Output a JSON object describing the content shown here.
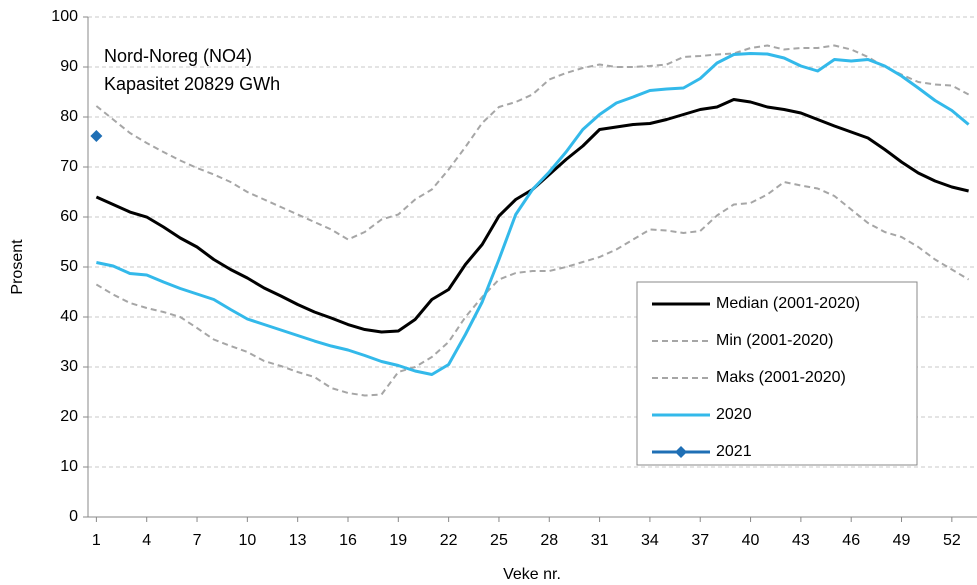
{
  "chart_data": {
    "type": "line",
    "title": "Nord-Noreg (NO4)",
    "subtitle": "Kapasitet 20829 GWh",
    "x_label": "Veke nr.",
    "y_label": "Prosent",
    "x": [
      1,
      2,
      3,
      4,
      5,
      6,
      7,
      8,
      9,
      10,
      11,
      12,
      13,
      14,
      15,
      16,
      17,
      18,
      19,
      20,
      21,
      22,
      23,
      24,
      25,
      26,
      27,
      28,
      29,
      30,
      31,
      32,
      33,
      34,
      35,
      36,
      37,
      38,
      39,
      40,
      41,
      42,
      43,
      44,
      45,
      46,
      47,
      48,
      49,
      50,
      51,
      52,
      53
    ],
    "xlim": [
      0.5,
      53.5
    ],
    "xticks": [
      1,
      4,
      7,
      10,
      13,
      16,
      19,
      22,
      25,
      28,
      31,
      34,
      37,
      40,
      43,
      46,
      49,
      52
    ],
    "ylim": [
      0,
      100
    ],
    "yticks": [
      0,
      10,
      20,
      30,
      40,
      50,
      60,
      70,
      80,
      90,
      100
    ],
    "grid": true,
    "legend": "lower right",
    "series": [
      {
        "name": "Median (2001-2020)",
        "color": "#000000",
        "style": "solid",
        "width": 3,
        "values": [
          64,
          62.5,
          61,
          60,
          58,
          55.8,
          54,
          51.5,
          49.5,
          47.8,
          45.8,
          44.2,
          42.5,
          41,
          39.8,
          38.5,
          37.5,
          37,
          37.2,
          39.5,
          43.5,
          45.5,
          50.5,
          54.5,
          60.2,
          63.5,
          65.5,
          68.5,
          71.5,
          74.2,
          77.5,
          78,
          78.5,
          78.7,
          79.5,
          80.5,
          81.5,
          82,
          83.5,
          83,
          82,
          81.5,
          80.8,
          79.5,
          78.2,
          77,
          75.8,
          73.5,
          71,
          68.8,
          67.2,
          66,
          65.2
        ]
      },
      {
        "name": "Min (2001-2020)",
        "color": "#a6a6a6",
        "style": "dashed",
        "width": 2,
        "values": [
          46.5,
          44.5,
          42.8,
          41.8,
          41,
          40,
          37.8,
          35.5,
          34.2,
          33,
          31.2,
          30.2,
          29,
          28,
          25.8,
          24.8,
          24.3,
          24.5,
          29,
          30,
          32,
          35,
          40,
          44,
          47.5,
          48.8,
          49.2,
          49.2,
          50,
          51,
          52,
          53.5,
          55.5,
          57.5,
          57.3,
          56.8,
          57.2,
          60.3,
          62.5,
          62.8,
          64.5,
          67,
          66.3,
          65.7,
          64.2,
          61.5,
          58.8,
          57,
          56,
          54,
          51.5,
          49.5,
          47.5
        ]
      },
      {
        "name": "Maks (2001-2020)",
        "color": "#a6a6a6",
        "style": "dashed",
        "width": 2,
        "values": [
          82.2,
          79.5,
          76.8,
          74.8,
          73,
          71.3,
          69.8,
          68.5,
          67,
          65,
          63.5,
          62,
          60.5,
          59,
          57.5,
          55.5,
          57,
          59.5,
          60.5,
          63.5,
          65.5,
          69.5,
          74,
          78.8,
          82,
          83,
          84.5,
          87.5,
          88.8,
          89.8,
          90.5,
          90,
          90,
          90.2,
          90.5,
          92,
          92.2,
          92.5,
          92.7,
          93.8,
          94.3,
          93.5,
          93.8,
          93.8,
          94.3,
          93.5,
          92,
          90,
          88.5,
          87,
          86.5,
          86.3,
          84.5
        ]
      },
      {
        "name": "2020",
        "color": "#33b9ea",
        "style": "solid",
        "width": 3,
        "values": [
          50.9,
          50.2,
          48.7,
          48.4,
          47,
          45.7,
          44.6,
          43.5,
          41.5,
          39.6,
          38.5,
          37.4,
          36.3,
          35.2,
          34.2,
          33.4,
          32.3,
          31.1,
          30.3,
          29.2,
          28.5,
          30.5,
          36.5,
          43,
          51.5,
          60.5,
          65.5,
          69,
          73,
          77.5,
          80.5,
          82.8,
          84,
          85.3,
          85.6,
          85.8,
          87.7,
          90.8,
          92.5,
          92.7,
          92.6,
          91.8,
          90.2,
          89.2,
          91.5,
          91.2,
          91.5,
          90.2,
          88.2,
          85.8,
          83.3,
          81.3,
          78.5
        ]
      },
      {
        "name": "2021",
        "color": "#1f6fb5",
        "style": "solid",
        "width": 3,
        "marker": "diamond",
        "values": [
          76.2,
          null,
          null,
          null,
          null,
          null,
          null,
          null,
          null,
          null,
          null,
          null,
          null,
          null,
          null,
          null,
          null,
          null,
          null,
          null,
          null,
          null,
          null,
          null,
          null,
          null,
          null,
          null,
          null,
          null,
          null,
          null,
          null,
          null,
          null,
          null,
          null,
          null,
          null,
          null,
          null,
          null,
          null,
          null,
          null,
          null,
          null,
          null,
          null,
          null,
          null,
          null,
          null
        ]
      }
    ]
  }
}
